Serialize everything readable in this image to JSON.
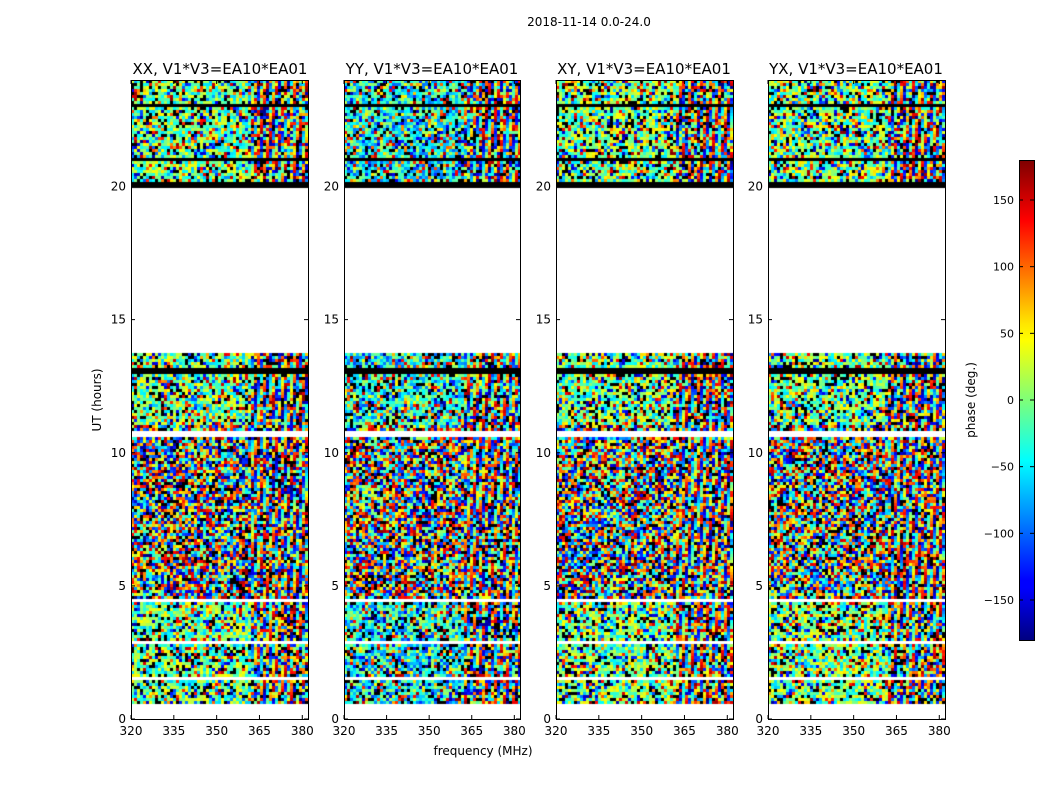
{
  "chart_data": {
    "type": "heatmap",
    "suptitle": "2018-11-14 0.0-24.0",
    "xlabel": "frequency (MHz)",
    "ylabel": "UT (hours)",
    "xlim": [
      320,
      382
    ],
    "ylim": [
      0,
      24
    ],
    "xticks": [
      "320",
      "335",
      "350",
      "365",
      "380"
    ],
    "yticks": [
      "0",
      "5",
      "10",
      "15",
      "20"
    ],
    "panels": [
      {
        "title": "XX, V1*V3=EA10*EA01",
        "color_bias": -5
      },
      {
        "title": "YY, V1*V3=EA10*EA01",
        "color_bias": -40
      },
      {
        "title": "XY, V1*V3=EA10*EA01",
        "color_bias": 0
      },
      {
        "title": "YX, V1*V3=EA10*EA01",
        "color_bias": 0
      }
    ],
    "data_gaps_hours": [
      [
        13.8,
        19.9
      ],
      [
        10.55,
        10.8
      ],
      [
        4.4,
        4.55
      ],
      [
        2.85,
        2.95
      ],
      [
        1.5,
        1.6
      ],
      [
        0.0,
        0.55
      ]
    ],
    "flagged_bands_hours": [
      [
        20.0,
        20.15
      ],
      [
        13.0,
        13.15
      ],
      [
        23.0,
        23.15
      ],
      [
        21.0,
        21.1
      ]
    ],
    "colorbar": {
      "label": "phase (deg.)",
      "vmin": -180,
      "vmax": 180,
      "ticks": [
        "150",
        "100",
        "50",
        "0",
        "−50",
        "−100",
        "−150"
      ],
      "tick_values": [
        150,
        100,
        50,
        0,
        -50,
        -100,
        -150
      ],
      "colormap": "jet"
    }
  }
}
